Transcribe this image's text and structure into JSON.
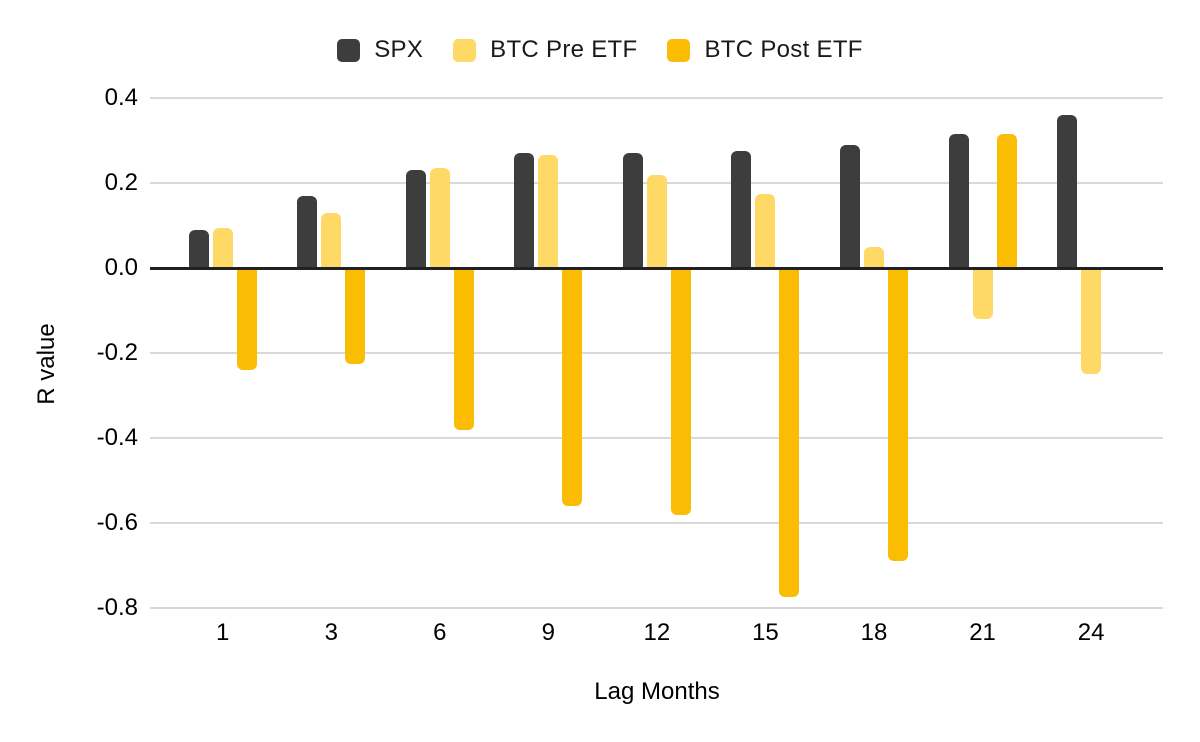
{
  "chart_data": {
    "type": "bar",
    "title": "",
    "xlabel": "Lag Months",
    "ylabel": "R value",
    "categories": [
      "1",
      "3",
      "6",
      "9",
      "12",
      "15",
      "18",
      "21",
      "24"
    ],
    "series": [
      {
        "name": "SPX",
        "color": "#3d3d3d",
        "values": [
          0.09,
          0.17,
          0.23,
          0.27,
          0.27,
          0.275,
          0.29,
          0.315,
          0.36
        ]
      },
      {
        "name": "BTC Pre ETF",
        "color": "#ffd966",
        "values": [
          0.095,
          0.13,
          0.235,
          0.265,
          0.22,
          0.175,
          0.05,
          -0.12,
          -0.25
        ]
      },
      {
        "name": "BTC Post ETF",
        "color": "#fbbc04",
        "values": [
          -0.24,
          -0.225,
          -0.38,
          -0.56,
          -0.58,
          -0.775,
          -0.69,
          0.315,
          null
        ]
      }
    ],
    "ylim": [
      -0.8,
      0.4
    ],
    "yticks": [
      0.4,
      0.2,
      0.0,
      -0.2,
      -0.4,
      -0.6,
      -0.8
    ],
    "ytick_labels": [
      "0.4",
      "0.2",
      "0.0",
      "-0.2",
      "-0.4",
      "-0.6",
      "-0.8"
    ],
    "grid": true,
    "legend_position": "top"
  },
  "colors": {
    "background": "#ffffff",
    "gridline": "#d9d9d9",
    "zero_axis": "#212121",
    "text": "#000000"
  }
}
